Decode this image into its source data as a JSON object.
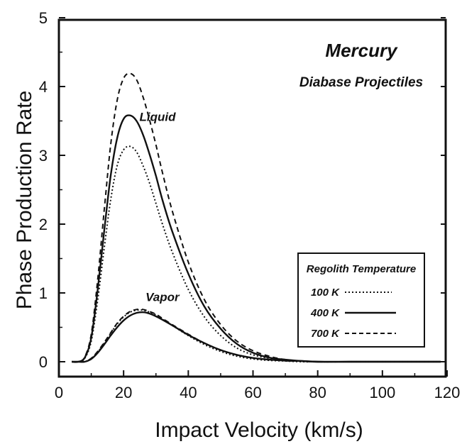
{
  "chart_data": {
    "type": "line",
    "title": "Mercury",
    "subtitle": "Diabase Projectiles",
    "xlabel": "Impact Velocity (km/s)",
    "ylabel": "Phase Production Rate",
    "xlim": [
      0,
      120
    ],
    "ylim": [
      0,
      5
    ],
    "xticks": [
      0,
      20,
      40,
      60,
      80,
      100,
      120
    ],
    "yticks": [
      0,
      1,
      2,
      3,
      4,
      5
    ],
    "grid": false,
    "legend": {
      "title": "Regolith Temperature",
      "placement": "lower-right",
      "entries": [
        {
          "label": "100 K",
          "dash": "dotted"
        },
        {
          "label": "400 K",
          "dash": "solid"
        },
        {
          "label": "700 K",
          "dash": "dashed"
        }
      ]
    },
    "annotations": [
      {
        "text": "Liquid",
        "x": 30.5,
        "y": 3.5
      },
      {
        "text": "Vapor",
        "x": 32,
        "y": 0.88
      }
    ],
    "x": [
      4,
      6,
      8,
      10,
      12,
      14,
      16,
      18,
      20,
      22,
      24,
      26,
      28,
      30,
      32,
      35,
      40,
      45,
      50,
      55,
      60,
      65,
      70,
      75,
      80,
      90,
      100,
      110,
      118
    ],
    "series": [
      {
        "name": "Liquid 100 K",
        "dash": "dotted",
        "values": [
          0,
          0,
          0.05,
          0.3,
          0.9,
          1.65,
          2.35,
          2.85,
          3.08,
          3.13,
          3.05,
          2.85,
          2.6,
          2.3,
          2.0,
          1.6,
          1.05,
          0.65,
          0.38,
          0.2,
          0.1,
          0.05,
          0.02,
          0.01,
          0,
          0,
          0,
          0,
          0
        ]
      },
      {
        "name": "Liquid 400 K",
        "dash": "solid",
        "values": [
          0,
          0,
          0.06,
          0.35,
          1.05,
          1.9,
          2.7,
          3.25,
          3.53,
          3.58,
          3.5,
          3.3,
          3.02,
          2.7,
          2.35,
          1.9,
          1.28,
          0.8,
          0.48,
          0.26,
          0.13,
          0.06,
          0.03,
          0.01,
          0,
          0,
          0,
          0,
          0
        ]
      },
      {
        "name": "Liquid 700 K",
        "dash": "dashed",
        "values": [
          0,
          0,
          0.07,
          0.4,
          1.2,
          2.2,
          3.15,
          3.8,
          4.12,
          4.19,
          4.1,
          3.85,
          3.52,
          3.15,
          2.75,
          2.2,
          1.45,
          0.9,
          0.54,
          0.3,
          0.16,
          0.08,
          0.03,
          0.01,
          0,
          0,
          0,
          0,
          0
        ]
      },
      {
        "name": "Vapor 100 K",
        "dash": "dotted",
        "values": [
          0,
          0,
          0,
          0.05,
          0.14,
          0.27,
          0.41,
          0.55,
          0.65,
          0.72,
          0.75,
          0.75,
          0.72,
          0.68,
          0.62,
          0.53,
          0.38,
          0.25,
          0.15,
          0.08,
          0.04,
          0.02,
          0.01,
          0,
          0,
          0,
          0,
          0,
          0
        ]
      },
      {
        "name": "Vapor 400 K",
        "dash": "solid",
        "values": [
          0,
          0,
          0,
          0.04,
          0.13,
          0.25,
          0.38,
          0.5,
          0.6,
          0.67,
          0.71,
          0.72,
          0.7,
          0.66,
          0.61,
          0.53,
          0.39,
          0.27,
          0.17,
          0.1,
          0.055,
          0.03,
          0.015,
          0.01,
          0,
          0,
          0,
          0,
          0
        ]
      },
      {
        "name": "Vapor 700 K",
        "dash": "dashed",
        "values": [
          0,
          0,
          0,
          0.05,
          0.15,
          0.28,
          0.42,
          0.56,
          0.66,
          0.73,
          0.76,
          0.76,
          0.73,
          0.69,
          0.63,
          0.54,
          0.4,
          0.27,
          0.17,
          0.1,
          0.055,
          0.03,
          0.015,
          0.01,
          0,
          0,
          0,
          0,
          0
        ]
      }
    ]
  }
}
